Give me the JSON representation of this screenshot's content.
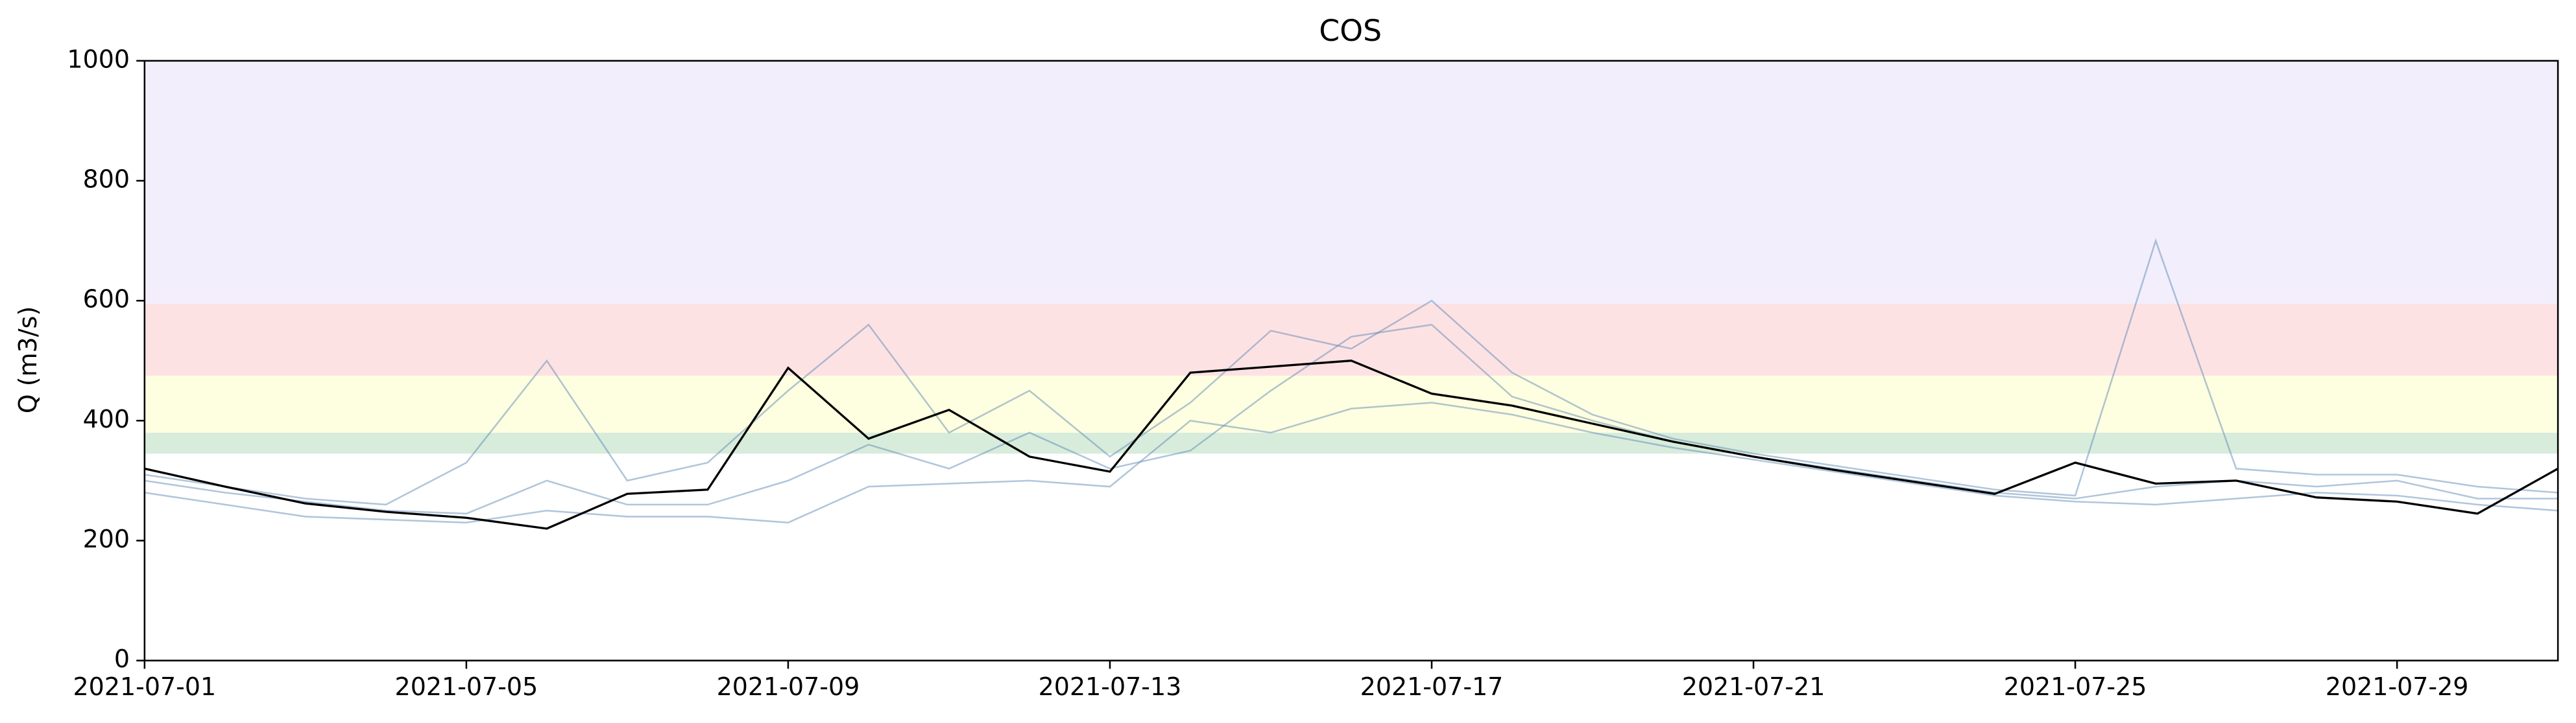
{
  "chart_data": {
    "type": "line",
    "title": "COS",
    "y_label": "Q (m3/s)",
    "x": [
      "2021-07-01",
      "2021-07-02",
      "2021-07-03",
      "2021-07-04",
      "2021-07-05",
      "2021-07-06",
      "2021-07-07",
      "2021-07-08",
      "2021-07-09",
      "2021-07-10",
      "2021-07-11",
      "2021-07-12",
      "2021-07-13",
      "2021-07-14",
      "2021-07-15",
      "2021-07-16",
      "2021-07-17",
      "2021-07-18",
      "2021-07-19",
      "2021-07-20",
      "2021-07-21",
      "2021-07-22",
      "2021-07-23",
      "2021-07-24",
      "2021-07-25",
      "2021-07-26",
      "2021-07-27",
      "2021-07-28",
      "2021-07-29",
      "2021-07-30",
      "2021-07-31"
    ],
    "xlim": [
      "2021-07-01",
      "2021-07-31"
    ],
    "xticks": [
      "2021-07-01",
      "2021-07-05",
      "2021-07-09",
      "2021-07-13",
      "2021-07-17",
      "2021-07-21",
      "2021-07-25",
      "2021-07-29"
    ],
    "ylim": [
      0,
      1000
    ],
    "yticks": [
      0,
      200,
      400,
      600,
      800,
      1000
    ],
    "bands": [
      {
        "ylim": [
          345,
          380
        ],
        "color": "#d8ecdc"
      },
      {
        "ylim": [
          380,
          475
        ],
        "color": "#fefee0"
      },
      {
        "ylim": [
          475,
          595
        ],
        "color": "#fde2e4"
      },
      {
        "ylim": [
          595,
          1000
        ],
        "color": "#f2eefb"
      }
    ],
    "series": [
      {
        "color": "#4f81b0",
        "values": [
          280,
          260,
          240,
          235,
          230,
          250,
          240,
          240,
          230,
          290,
          295,
          300,
          290,
          400,
          380,
          420,
          430,
          410,
          380,
          355,
          335,
          315,
          295,
          275,
          265,
          260,
          270,
          280,
          275,
          260,
          250
        ]
      },
      {
        "color": "#4f81b0",
        "values": [
          300,
          280,
          265,
          250,
          245,
          300,
          260,
          260,
          300,
          360,
          320,
          380,
          320,
          350,
          450,
          540,
          560,
          440,
          400,
          365,
          340,
          320,
          300,
          280,
          270,
          290,
          300,
          290,
          300,
          270,
          270
        ]
      },
      {
        "color": "#4f81b0",
        "values": [
          310,
          290,
          270,
          260,
          330,
          500,
          300,
          330,
          450,
          560,
          380,
          450,
          340,
          430,
          550,
          520,
          600,
          480,
          410,
          370,
          345,
          325,
          305,
          285,
          275,
          700,
          320,
          310,
          310,
          290,
          280
        ]
      },
      {
        "color": "#000000",
        "values": [
          320,
          290,
          262,
          248,
          238,
          220,
          278,
          285,
          488,
          370,
          418,
          340,
          315,
          480,
          490,
          500,
          445,
          425,
          395,
          365,
          340,
          318,
          298,
          278,
          330,
          295,
          300,
          272,
          265,
          245,
          320
        ]
      }
    ]
  }
}
